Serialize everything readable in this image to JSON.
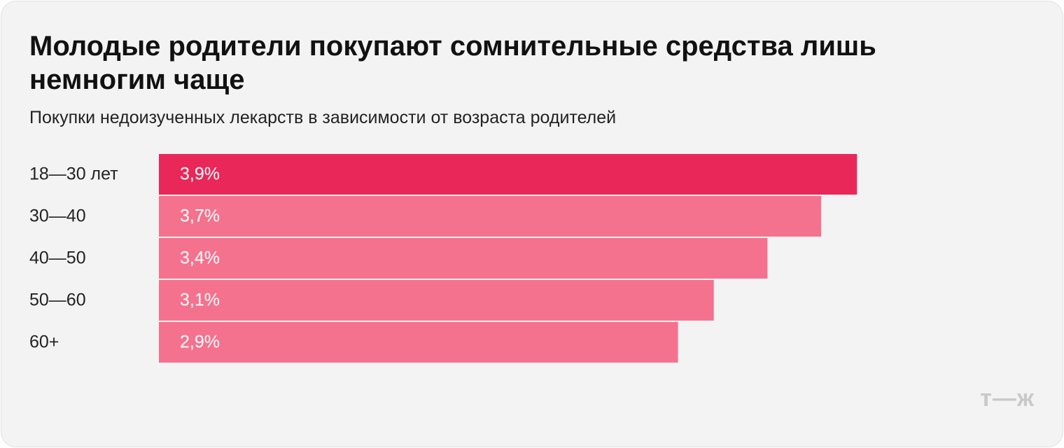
{
  "chart_data": {
    "type": "bar",
    "orientation": "horizontal",
    "title": "Молодые родители покупают сомнительные средства лишь немногим чаще",
    "subtitle": "Покупки недоизученных лекарств в зависимости от возраста родителей",
    "categories": [
      "18—30 лет",
      "30—40",
      "40—50",
      "50—60",
      "60+"
    ],
    "values": [
      3.9,
      3.7,
      3.4,
      3.1,
      2.9
    ],
    "value_labels": [
      "3,9%",
      "3,7%",
      "3,4%",
      "3,1%",
      "2,9%"
    ],
    "colors": [
      "#e92758",
      "#f5728f",
      "#f5728f",
      "#f5728f",
      "#f5728f"
    ],
    "xlim": [
      0,
      4.9
    ],
    "logo": "т—ж"
  }
}
